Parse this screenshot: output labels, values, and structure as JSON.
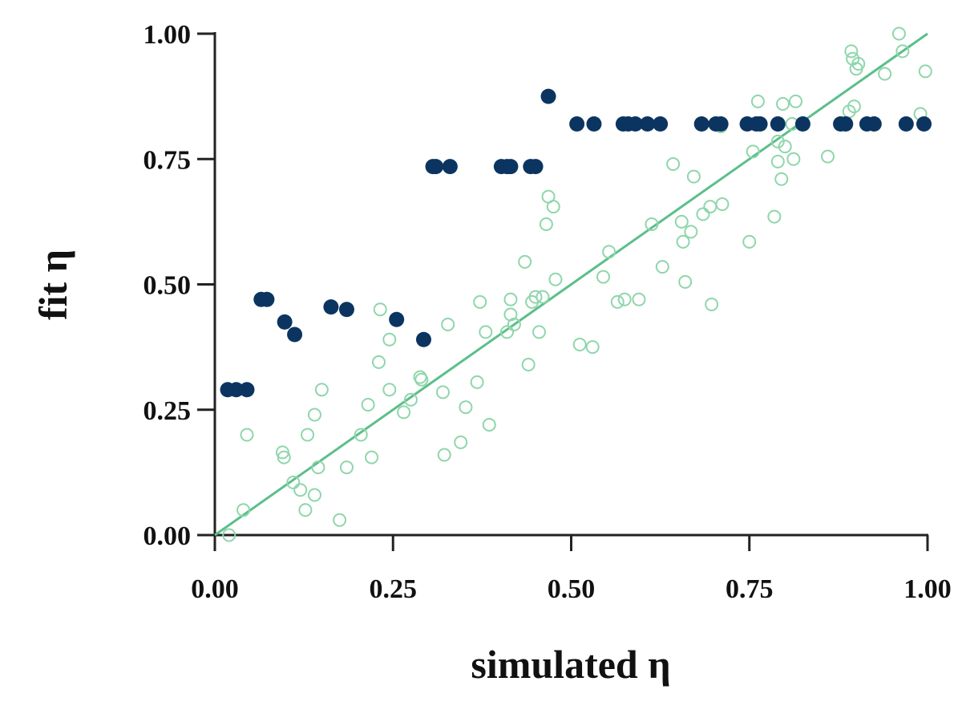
{
  "chart_data": {
    "type": "scatter",
    "title": "",
    "xlabel": "simulated η",
    "ylabel": "fit η",
    "xlim": [
      0,
      1
    ],
    "ylim": [
      0,
      1
    ],
    "x_ticks": [
      "0.00",
      "0.25",
      "0.50",
      "0.75",
      "1.00"
    ],
    "y_ticks": [
      "0.00",
      "0.25",
      "0.50",
      "0.75",
      "1.00"
    ],
    "grid": false,
    "legend": "none",
    "reference_line": {
      "type": "identity",
      "from": [
        0,
        0
      ],
      "to": [
        1,
        1
      ],
      "color": "#5bbf8a"
    },
    "series": [
      {
        "style": "hollow",
        "color": "#8fd6ab",
        "points": [
          [
            0.02,
            0.0
          ],
          [
            0.04,
            0.05
          ],
          [
            0.045,
            0.2
          ],
          [
            0.095,
            0.165
          ],
          [
            0.097,
            0.155
          ],
          [
            0.11,
            0.105
          ],
          [
            0.12,
            0.09
          ],
          [
            0.127,
            0.05
          ],
          [
            0.13,
            0.2
          ],
          [
            0.14,
            0.24
          ],
          [
            0.14,
            0.08
          ],
          [
            0.145,
            0.135
          ],
          [
            0.15,
            0.29
          ],
          [
            0.175,
            0.03
          ],
          [
            0.185,
            0.135
          ],
          [
            0.205,
            0.2
          ],
          [
            0.215,
            0.26
          ],
          [
            0.22,
            0.155
          ],
          [
            0.23,
            0.345
          ],
          [
            0.232,
            0.45
          ],
          [
            0.245,
            0.39
          ],
          [
            0.245,
            0.29
          ],
          [
            0.265,
            0.245
          ],
          [
            0.275,
            0.27
          ],
          [
            0.288,
            0.315
          ],
          [
            0.29,
            0.31
          ],
          [
            0.32,
            0.285
          ],
          [
            0.322,
            0.16
          ],
          [
            0.327,
            0.42
          ],
          [
            0.345,
            0.185
          ],
          [
            0.352,
            0.255
          ],
          [
            0.368,
            0.305
          ],
          [
            0.372,
            0.465
          ],
          [
            0.38,
            0.405
          ],
          [
            0.385,
            0.22
          ],
          [
            0.41,
            0.405
          ],
          [
            0.415,
            0.47
          ],
          [
            0.415,
            0.44
          ],
          [
            0.42,
            0.42
          ],
          [
            0.435,
            0.545
          ],
          [
            0.44,
            0.34
          ],
          [
            0.445,
            0.465
          ],
          [
            0.45,
            0.475
          ],
          [
            0.455,
            0.405
          ],
          [
            0.46,
            0.475
          ],
          [
            0.465,
            0.62
          ],
          [
            0.468,
            0.675
          ],
          [
            0.475,
            0.655
          ],
          [
            0.478,
            0.51
          ],
          [
            0.512,
            0.38
          ],
          [
            0.53,
            0.375
          ],
          [
            0.545,
            0.515
          ],
          [
            0.553,
            0.565
          ],
          [
            0.565,
            0.465
          ],
          [
            0.575,
            0.47
          ],
          [
            0.595,
            0.47
          ],
          [
            0.613,
            0.62
          ],
          [
            0.628,
            0.535
          ],
          [
            0.643,
            0.74
          ],
          [
            0.655,
            0.625
          ],
          [
            0.657,
            0.585
          ],
          [
            0.66,
            0.505
          ],
          [
            0.668,
            0.605
          ],
          [
            0.672,
            0.715
          ],
          [
            0.685,
            0.64
          ],
          [
            0.695,
            0.655
          ],
          [
            0.697,
            0.46
          ],
          [
            0.71,
            0.815
          ],
          [
            0.712,
            0.66
          ],
          [
            0.75,
            0.585
          ],
          [
            0.755,
            0.765
          ],
          [
            0.762,
            0.865
          ],
          [
            0.785,
            0.635
          ],
          [
            0.79,
            0.745
          ],
          [
            0.79,
            0.785
          ],
          [
            0.795,
            0.71
          ],
          [
            0.797,
            0.86
          ],
          [
            0.8,
            0.775
          ],
          [
            0.81,
            0.82
          ],
          [
            0.812,
            0.75
          ],
          [
            0.815,
            0.865
          ],
          [
            0.86,
            0.755
          ],
          [
            0.89,
            0.845
          ],
          [
            0.893,
            0.965
          ],
          [
            0.895,
            0.95
          ],
          [
            0.897,
            0.855
          ],
          [
            0.9,
            0.93
          ],
          [
            0.903,
            0.94
          ],
          [
            0.94,
            0.92
          ],
          [
            0.96,
            1.0
          ],
          [
            0.965,
            0.965
          ],
          [
            0.99,
            0.84
          ],
          [
            0.997,
            0.925
          ]
        ]
      },
      {
        "style": "filled",
        "color": "#0b3560",
        "points": [
          [
            0.018,
            0.29
          ],
          [
            0.03,
            0.29
          ],
          [
            0.045,
            0.29
          ],
          [
            0.065,
            0.47
          ],
          [
            0.073,
            0.47
          ],
          [
            0.098,
            0.425
          ],
          [
            0.112,
            0.4
          ],
          [
            0.163,
            0.455
          ],
          [
            0.185,
            0.45
          ],
          [
            0.255,
            0.43
          ],
          [
            0.293,
            0.39
          ],
          [
            0.306,
            0.735
          ],
          [
            0.31,
            0.735
          ],
          [
            0.33,
            0.735
          ],
          [
            0.402,
            0.735
          ],
          [
            0.41,
            0.735
          ],
          [
            0.415,
            0.735
          ],
          [
            0.443,
            0.735
          ],
          [
            0.45,
            0.735
          ],
          [
            0.468,
            0.875
          ],
          [
            0.508,
            0.82
          ],
          [
            0.532,
            0.82
          ],
          [
            0.573,
            0.82
          ],
          [
            0.58,
            0.82
          ],
          [
            0.59,
            0.82
          ],
          [
            0.607,
            0.82
          ],
          [
            0.625,
            0.82
          ],
          [
            0.683,
            0.82
          ],
          [
            0.703,
            0.82
          ],
          [
            0.71,
            0.82
          ],
          [
            0.747,
            0.82
          ],
          [
            0.76,
            0.82
          ],
          [
            0.765,
            0.82
          ],
          [
            0.79,
            0.82
          ],
          [
            0.825,
            0.82
          ],
          [
            0.878,
            0.82
          ],
          [
            0.885,
            0.82
          ],
          [
            0.915,
            0.82
          ],
          [
            0.925,
            0.82
          ],
          [
            0.97,
            0.82
          ],
          [
            0.995,
            0.82
          ]
        ]
      }
    ]
  }
}
